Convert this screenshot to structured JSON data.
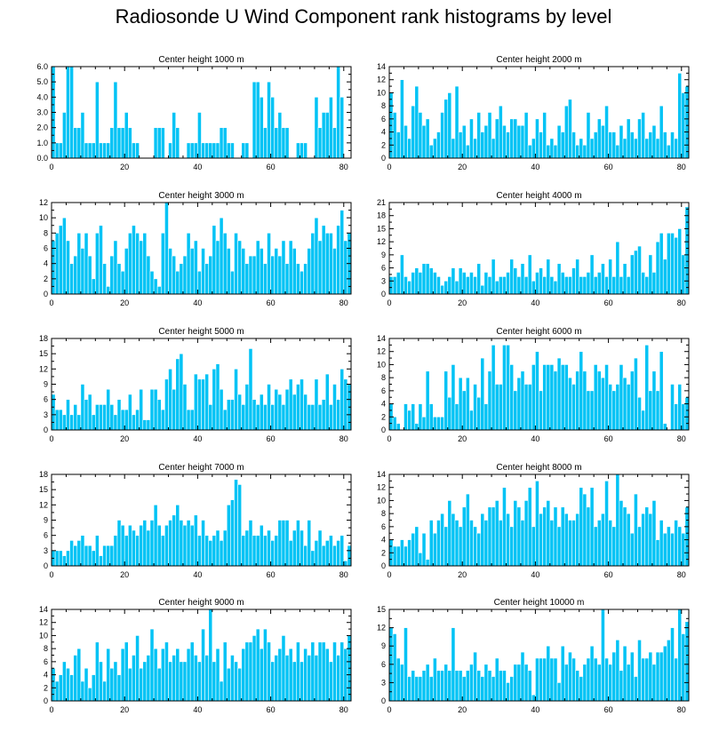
{
  "title": "Radiosonde U Wind Component rank histograms by level",
  "colors": {
    "bar": "#00C3F5",
    "bar_stroke": "#ffffff",
    "axis": "#000000",
    "background": "#ffffff"
  },
  "chart_data": [
    {
      "type": "bar",
      "title": "Center height 1000 m",
      "xlabel": "",
      "ylabel": "",
      "xlim": [
        0,
        82
      ],
      "xticks": [
        0,
        20,
        40,
        60,
        80
      ],
      "xticklabels": [
        "0",
        "20",
        "40",
        "60",
        "80"
      ],
      "ylim": [
        0,
        6
      ],
      "yticks": [
        0,
        1,
        2,
        3,
        4,
        5,
        6
      ],
      "yticklabels": [
        "0.0",
        "1.0",
        "2.0",
        "3.0",
        "4.0",
        "5.0",
        "6.0"
      ],
      "categories_start": 0,
      "values": [
        6,
        1,
        1,
        3,
        6,
        6,
        2,
        2,
        3,
        1,
        1,
        1,
        5,
        1,
        1,
        1,
        2,
        5,
        2,
        2,
        3,
        2,
        1,
        1,
        0,
        0,
        0,
        0,
        2,
        2,
        2,
        0,
        1,
        3,
        2,
        0,
        0,
        1,
        1,
        1,
        3,
        1,
        1,
        1,
        1,
        1,
        2,
        2,
        1,
        1,
        0,
        0,
        1,
        1,
        0,
        5,
        5,
        4,
        2,
        5,
        4,
        2,
        3,
        2,
        2,
        0,
        0,
        1,
        1,
        1,
        0,
        0,
        4,
        2,
        3,
        3,
        4,
        2,
        6,
        4,
        0,
        0
      ]
    },
    {
      "type": "bar",
      "title": "Center height 2000 m",
      "xlabel": "",
      "ylabel": "",
      "xlim": [
        0,
        82
      ],
      "xticks": [
        0,
        20,
        40,
        60,
        80
      ],
      "xticklabels": [
        "0",
        "20",
        "40",
        "60",
        "80"
      ],
      "ylim": [
        0,
        14
      ],
      "yticks": [
        0,
        2,
        4,
        6,
        8,
        10,
        12,
        14
      ],
      "yticklabels": [
        "0",
        "2",
        "4",
        "6",
        "8",
        "10",
        "12",
        "14"
      ],
      "categories_start": 0,
      "values": [
        10,
        7,
        4,
        12,
        5,
        3,
        8,
        11,
        7,
        5,
        6,
        2,
        3,
        4,
        7,
        9,
        10,
        3,
        11,
        4,
        5,
        2,
        6,
        3,
        7,
        4,
        5,
        7,
        3,
        6,
        8,
        5,
        4,
        6,
        6,
        5,
        5,
        7,
        2,
        3,
        6,
        4,
        7,
        2,
        3,
        2,
        5,
        4,
        8,
        9,
        4,
        2,
        3,
        2,
        7,
        3,
        4,
        6,
        5,
        8,
        4,
        4,
        2,
        5,
        3,
        6,
        4,
        3,
        6,
        7,
        3,
        4,
        5,
        3,
        8,
        4,
        2,
        4,
        3,
        13,
        10,
        11
      ]
    },
    {
      "type": "bar",
      "title": "Center height 3000 m",
      "xlabel": "",
      "ylabel": "",
      "xlim": [
        0,
        82
      ],
      "xticks": [
        0,
        20,
        40,
        60,
        80
      ],
      "xticklabels": [
        "0",
        "20",
        "40",
        "60",
        "80"
      ],
      "ylim": [
        0,
        12
      ],
      "yticks": [
        0,
        2,
        4,
        6,
        8,
        10,
        12
      ],
      "yticklabels": [
        "0",
        "2",
        "4",
        "6",
        "8",
        "10",
        "12"
      ],
      "categories_start": 0,
      "values": [
        7,
        8,
        9,
        10,
        7,
        4,
        5,
        8,
        6,
        8,
        5,
        2,
        8,
        9,
        4,
        1,
        5,
        7,
        4,
        3,
        6,
        8,
        9,
        8,
        7,
        8,
        5,
        3,
        2,
        1,
        8,
        12,
        6,
        5,
        3,
        4,
        5,
        8,
        6,
        7,
        3,
        6,
        4,
        5,
        9,
        7,
        10,
        8,
        6,
        3,
        8,
        7,
        6,
        4,
        5,
        5,
        7,
        6,
        4,
        8,
        5,
        6,
        5,
        7,
        4,
        7,
        6,
        4,
        3,
        4,
        6,
        8,
        10,
        7,
        9,
        8,
        8,
        6,
        9,
        11,
        7,
        8
      ]
    },
    {
      "type": "bar",
      "title": "Center height 4000 m",
      "xlabel": "",
      "ylabel": "",
      "xlim": [
        0,
        82
      ],
      "xticks": [
        0,
        20,
        40,
        60,
        80
      ],
      "xticklabels": [
        "0",
        "20",
        "40",
        "60",
        "80"
      ],
      "ylim": [
        0,
        21
      ],
      "yticks": [
        0,
        3,
        6,
        9,
        12,
        15,
        18,
        21
      ],
      "yticklabels": [
        "0",
        "3",
        "6",
        "9",
        "12",
        "15",
        "18",
        "21"
      ],
      "categories_start": 0,
      "values": [
        4,
        4,
        5,
        9,
        4,
        3,
        5,
        6,
        5,
        7,
        7,
        6,
        5,
        4,
        2,
        3,
        4,
        6,
        3,
        6,
        5,
        4,
        5,
        4,
        7,
        2,
        5,
        4,
        8,
        3,
        4,
        4,
        5,
        8,
        6,
        4,
        7,
        4,
        9,
        3,
        5,
        6,
        4,
        8,
        4,
        3,
        7,
        5,
        4,
        4,
        6,
        8,
        4,
        4,
        5,
        9,
        4,
        5,
        7,
        4,
        8,
        4,
        12,
        4,
        7,
        4,
        9,
        10,
        11,
        5,
        4,
        9,
        5,
        12,
        14,
        8,
        14,
        14,
        13,
        15,
        9,
        20
      ]
    },
    {
      "type": "bar",
      "title": "Center height 5000 m",
      "xlabel": "",
      "ylabel": "",
      "xlim": [
        0,
        82
      ],
      "xticks": [
        0,
        20,
        40,
        60,
        80
      ],
      "xticklabels": [
        "0",
        "20",
        "40",
        "60",
        "80"
      ],
      "ylim": [
        0,
        18
      ],
      "yticks": [
        0,
        3,
        6,
        9,
        12,
        15,
        18
      ],
      "yticklabels": [
        "0",
        "3",
        "6",
        "9",
        "12",
        "15",
        "18"
      ],
      "categories_start": 0,
      "values": [
        7,
        4,
        4,
        3,
        6,
        3,
        5,
        3,
        9,
        6,
        7,
        3,
        5,
        5,
        5,
        8,
        5,
        3,
        6,
        4,
        4,
        7,
        3,
        4,
        8,
        2,
        2,
        8,
        8,
        6,
        4,
        10,
        12,
        8,
        14,
        15,
        9,
        4,
        4,
        11,
        10,
        10,
        11,
        5,
        12,
        13,
        8,
        4,
        6,
        6,
        12,
        7,
        5,
        9,
        16,
        6,
        5,
        7,
        5,
        9,
        5,
        8,
        7,
        5,
        8,
        10,
        7,
        9,
        10,
        7,
        5,
        5,
        10,
        5,
        6,
        11,
        5,
        9,
        6,
        12,
        10,
        9
      ]
    },
    {
      "type": "bar",
      "title": "Center height 6000 m",
      "xlabel": "",
      "ylabel": "",
      "xlim": [
        0,
        82
      ],
      "xticks": [
        0,
        20,
        40,
        60,
        80
      ],
      "xticklabels": [
        "0",
        "20",
        "40",
        "60",
        "80"
      ],
      "ylim": [
        0,
        14
      ],
      "yticks": [
        0,
        2,
        4,
        6,
        8,
        10,
        12,
        14
      ],
      "yticklabels": [
        "0",
        "2",
        "4",
        "6",
        "8",
        "10",
        "12",
        "14"
      ],
      "categories_start": 0,
      "values": [
        4,
        2,
        1,
        0,
        4,
        3,
        4,
        1,
        4,
        2,
        9,
        4,
        2,
        2,
        2,
        9,
        5,
        10,
        4,
        8,
        6,
        8,
        3,
        7,
        5,
        11,
        4,
        9,
        13,
        7,
        7,
        13,
        13,
        10,
        6,
        8,
        9,
        7,
        7,
        10,
        12,
        6,
        10,
        10,
        10,
        9,
        11,
        10,
        10,
        8,
        7,
        9,
        12,
        9,
        6,
        6,
        10,
        9,
        8,
        10,
        7,
        6,
        7,
        10,
        8,
        7,
        9,
        11,
        5,
        3,
        13,
        6,
        9,
        6,
        12,
        1,
        0,
        7,
        4,
        7,
        4,
        5
      ]
    },
    {
      "type": "bar",
      "title": "Center height 7000 m",
      "xlabel": "",
      "ylabel": "",
      "xlim": [
        0,
        82
      ],
      "xticks": [
        0,
        20,
        40,
        60,
        80
      ],
      "xticklabels": [
        "0",
        "20",
        "40",
        "60",
        "80"
      ],
      "ylim": [
        0,
        18
      ],
      "yticks": [
        0,
        3,
        6,
        9,
        12,
        15,
        18
      ],
      "yticklabels": [
        "0",
        "3",
        "6",
        "9",
        "12",
        "15",
        "18"
      ],
      "categories_start": 0,
      "values": [
        3,
        3,
        3,
        2,
        3,
        5,
        4,
        5,
        6,
        4,
        4,
        3,
        6,
        2,
        4,
        4,
        4,
        6,
        9,
        8,
        6,
        8,
        7,
        6,
        8,
        9,
        7,
        9,
        12,
        8,
        6,
        8,
        9,
        10,
        12,
        9,
        8,
        9,
        8,
        10,
        6,
        9,
        6,
        5,
        6,
        7,
        5,
        7,
        12,
        13,
        17,
        16,
        6,
        7,
        9,
        6,
        6,
        8,
        6,
        7,
        5,
        6,
        9,
        9,
        9,
        5,
        7,
        9,
        7,
        4,
        9,
        3,
        5,
        7,
        4,
        5,
        6,
        4,
        5,
        6,
        1,
        4
      ]
    },
    {
      "type": "bar",
      "title": "Center height 8000 m",
      "xlabel": "",
      "ylabel": "",
      "xlim": [
        0,
        82
      ],
      "xticks": [
        0,
        20,
        40,
        60,
        80
      ],
      "xticklabels": [
        "0",
        "20",
        "40",
        "60",
        "80"
      ],
      "ylim": [
        0,
        14
      ],
      "yticks": [
        0,
        2,
        4,
        6,
        8,
        10,
        12,
        14
      ],
      "yticklabels": [
        "0",
        "2",
        "4",
        "6",
        "8",
        "10",
        "12",
        "14"
      ],
      "categories_start": 0,
      "values": [
        4,
        3,
        3,
        4,
        3,
        4,
        5,
        6,
        2,
        5,
        1,
        7,
        5,
        7,
        8,
        6,
        10,
        8,
        7,
        6,
        9,
        11,
        7,
        6,
        5,
        8,
        7,
        9,
        9,
        10,
        7,
        12,
        8,
        6,
        10,
        9,
        7,
        10,
        12,
        6,
        13,
        8,
        9,
        10,
        7,
        9,
        6,
        9,
        8,
        7,
        7,
        8,
        12,
        11,
        9,
        12,
        6,
        7,
        8,
        13,
        7,
        6,
        14,
        10,
        9,
        8,
        5,
        11,
        6,
        8,
        9,
        8,
        10,
        4,
        7,
        5,
        6,
        5,
        7,
        6,
        5,
        9
      ]
    },
    {
      "type": "bar",
      "title": "Center height 9000 m",
      "xlabel": "",
      "ylabel": "",
      "xlim": [
        0,
        82
      ],
      "xticks": [
        0,
        20,
        40,
        60,
        80
      ],
      "xticklabels": [
        "0",
        "20",
        "40",
        "60",
        "80"
      ],
      "ylim": [
        0,
        14
      ],
      "yticks": [
        0,
        2,
        4,
        6,
        8,
        10,
        12,
        14
      ],
      "yticklabels": [
        "0",
        "2",
        "4",
        "6",
        "8",
        "10",
        "12",
        "14"
      ],
      "categories_start": 0,
      "values": [
        5,
        3,
        4,
        6,
        5,
        4,
        7,
        8,
        3,
        5,
        2,
        4,
        9,
        6,
        3,
        8,
        5,
        6,
        4,
        8,
        9,
        5,
        7,
        10,
        5,
        6,
        7,
        11,
        8,
        5,
        8,
        9,
        6,
        7,
        8,
        6,
        6,
        8,
        9,
        7,
        6,
        11,
        7,
        14,
        6,
        8,
        3,
        9,
        5,
        7,
        6,
        5,
        8,
        9,
        9,
        10,
        11,
        8,
        11,
        9,
        6,
        7,
        8,
        10,
        7,
        8,
        6,
        9,
        6,
        8,
        7,
        9,
        7,
        9,
        9,
        8,
        6,
        9,
        7,
        9,
        8,
        10
      ]
    },
    {
      "type": "bar",
      "title": "Center height 10000 m",
      "xlabel": "",
      "ylabel": "",
      "xlim": [
        0,
        82
      ],
      "xticks": [
        0,
        20,
        40,
        60,
        80
      ],
      "xticklabels": [
        "0",
        "20",
        "40",
        "60",
        "80"
      ],
      "ylim": [
        0,
        15
      ],
      "yticks": [
        0,
        3,
        6,
        9,
        12,
        15
      ],
      "yticklabels": [
        "0",
        "3",
        "6",
        "9",
        "12",
        "15"
      ],
      "categories_start": 0,
      "values": [
        12,
        11,
        7,
        6,
        12,
        4,
        5,
        4,
        4,
        5,
        6,
        4,
        7,
        5,
        5,
        6,
        5,
        12,
        5,
        5,
        4,
        5,
        6,
        8,
        5,
        4,
        6,
        5,
        4,
        7,
        5,
        5,
        3,
        4,
        6,
        6,
        8,
        6,
        5,
        1,
        7,
        7,
        7,
        9,
        7,
        7,
        3,
        9,
        6,
        8,
        7,
        5,
        4,
        6,
        7,
        9,
        7,
        6,
        15,
        7,
        6,
        8,
        10,
        5,
        9,
        6,
        8,
        4,
        10,
        7,
        7,
        8,
        6,
        8,
        8,
        9,
        10,
        12,
        7,
        15,
        11,
        13
      ]
    }
  ]
}
